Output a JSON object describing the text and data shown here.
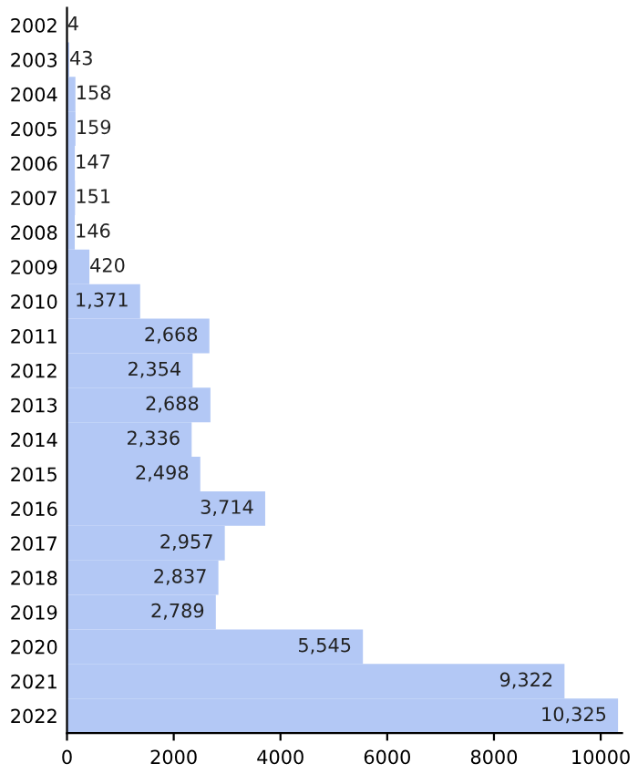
{
  "chart_data": {
    "type": "bar",
    "orientation": "horizontal",
    "categories": [
      "2002",
      "2003",
      "2004",
      "2005",
      "2006",
      "2007",
      "2008",
      "2009",
      "2010",
      "2011",
      "2012",
      "2013",
      "2014",
      "2015",
      "2016",
      "2017",
      "2018",
      "2019",
      "2020",
      "2021",
      "2022"
    ],
    "values": [
      4,
      43,
      158,
      159,
      147,
      151,
      146,
      420,
      1371,
      2668,
      2354,
      2688,
      2336,
      2498,
      3714,
      2957,
      2837,
      2789,
      5545,
      9322,
      10325
    ],
    "value_labels": [
      "4",
      "43",
      "158",
      "159",
      "147",
      "151",
      "146",
      "420",
      "1,371",
      "2,668",
      "2,354",
      "2,688",
      "2,336",
      "2,498",
      "3,714",
      "2,957",
      "2,837",
      "2,789",
      "5,545",
      "9,322",
      "10,325"
    ],
    "color": "#b3c8f5",
    "xlim": [
      0,
      10400
    ],
    "xticks": [
      0,
      2000,
      4000,
      6000,
      8000,
      10000
    ],
    "grid": false,
    "legend": false
  }
}
